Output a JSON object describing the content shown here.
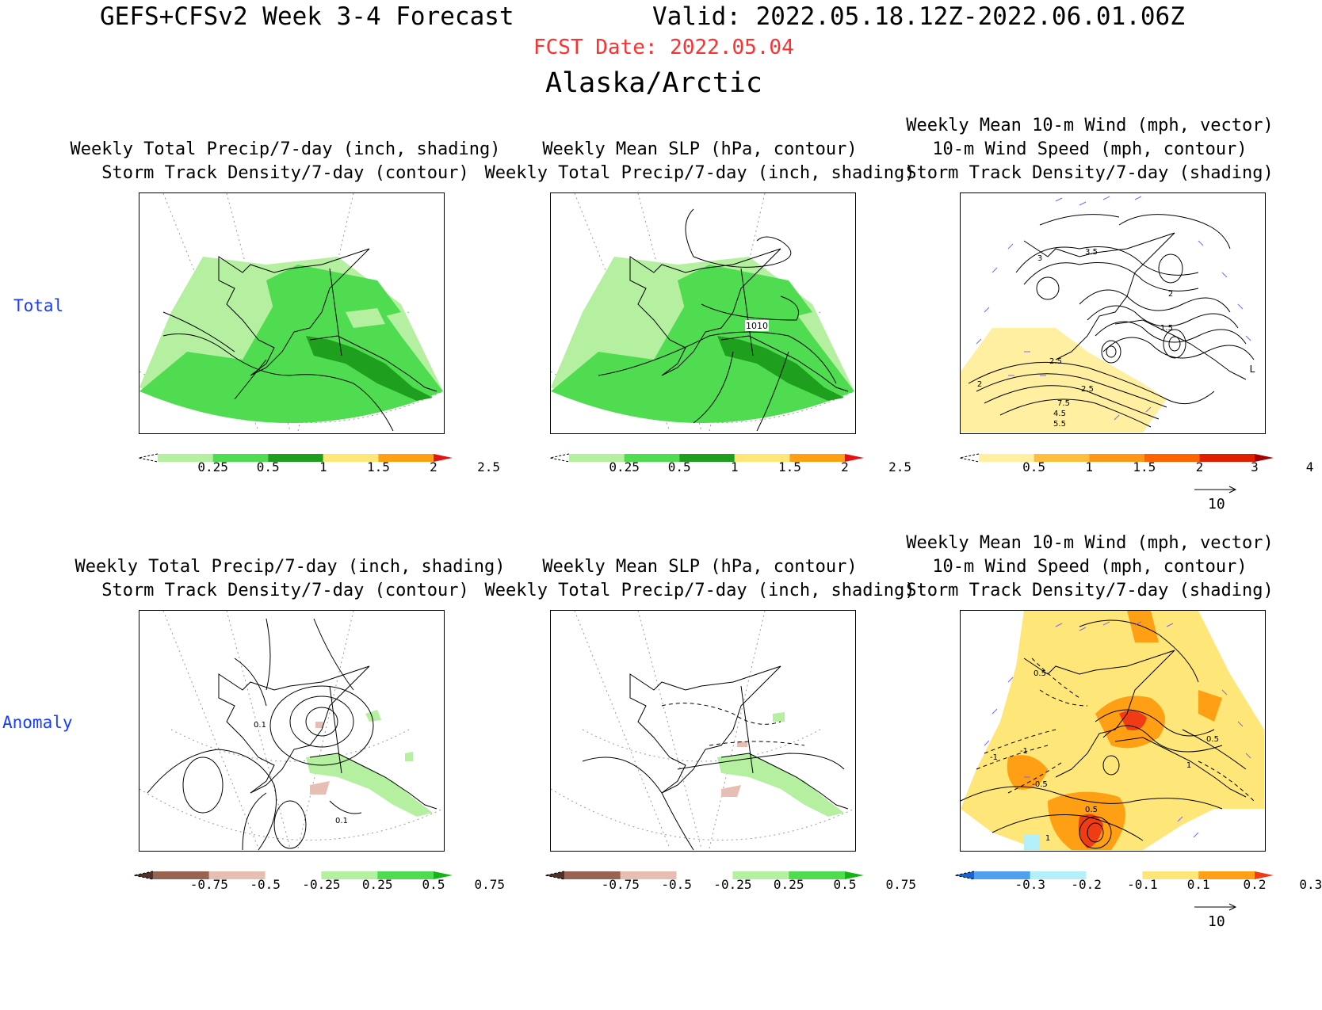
{
  "header": {
    "title": "GEFS+CFSv2 Week 3-4 Forecast",
    "valid": "Valid: 2022.05.18.12Z-2022.06.01.06Z",
    "fcst_date": "FCST Date: 2022.05.04",
    "region": "Alaska/Arctic",
    "fcst_color": "#ff3030"
  },
  "rows": [
    {
      "label": "Total",
      "color": "#1a3cff"
    },
    {
      "label": "Anomaly",
      "color": "#1a3cff"
    }
  ],
  "panels": [
    {
      "id": "p1",
      "title": [
        "Weekly Total Precip/7-day (inch, shading)",
        "Storm Track Density/7-day (contour)"
      ],
      "labels": []
    },
    {
      "id": "p2",
      "title": [
        "Weekly Mean SLP (hPa, contour)",
        "Weekly Total Precip/7-day (inch, shading)"
      ],
      "labels": [
        "1010"
      ]
    },
    {
      "id": "p3",
      "title": [
        "Weekly Mean 10-m Wind (mph, vector)",
        "10-m Wind Speed (mph, contour)",
        "Storm Track Density/7-day (shading)"
      ],
      "labels": [
        "3.5",
        "3",
        "2.5",
        "2",
        "1.5",
        "2.5",
        "7.5",
        "4.5",
        "5.5",
        "2",
        "L"
      ]
    },
    {
      "id": "p4",
      "title": [
        "Weekly Total Precip/7-day (inch, shading)",
        "Storm Track Density/7-day (contour)"
      ],
      "labels": [
        "0.1",
        "0.1"
      ]
    },
    {
      "id": "p5",
      "title": [
        "Weekly Mean SLP (hPa, contour)",
        "Weekly Total Precip/7-day (inch, shading)"
      ],
      "labels": []
    },
    {
      "id": "p6",
      "title": [
        "Weekly Mean 10-m Wind (mph, vector)",
        "10-m Wind Speed (mph, contour)",
        "Storm Track Density/7-day (shading)"
      ],
      "labels": [
        "0.5",
        "-1",
        "-0.5",
        "0.5",
        "1",
        "0.5",
        "-1",
        "1"
      ]
    }
  ],
  "colorbars": {
    "precip": {
      "colors": [
        "#ffffff",
        "#b4f0a0",
        "#50dc50",
        "#1ea01e",
        "#ffe678",
        "#ffa014",
        "#e11414"
      ],
      "ticks": [
        "0.25",
        "0.5",
        "1",
        "1.5",
        "2",
        "2.5"
      ]
    },
    "density": {
      "colors": [
        "#ffffff",
        "#ffefa0",
        "#ffbe3c",
        "#ff9614",
        "#ff6400",
        "#e11e00",
        "#a50000"
      ],
      "ticks": [
        "0.5",
        "1",
        "1.5",
        "2",
        "3",
        "4"
      ]
    },
    "precip_anom": {
      "colors": [
        "#503028",
        "#966450",
        "#e6beb4",
        "#ffffff",
        "#b4f0a0",
        "#50dc50",
        "#14b414"
      ],
      "ticks": [
        "-0.75",
        "-0.5",
        "-0.25",
        "0.25",
        "0.5",
        "0.75"
      ]
    },
    "density_anom": {
      "colors": [
        "#1464d2",
        "#50a0f0",
        "#b4f0fa",
        "#ffffff",
        "#ffe678",
        "#ffa014",
        "#f03c14"
      ],
      "ticks": [
        "-0.3",
        "-0.2",
        "-0.1",
        "0.1",
        "0.2",
        "0.3"
      ]
    }
  },
  "vector_ref": {
    "label": "10"
  }
}
